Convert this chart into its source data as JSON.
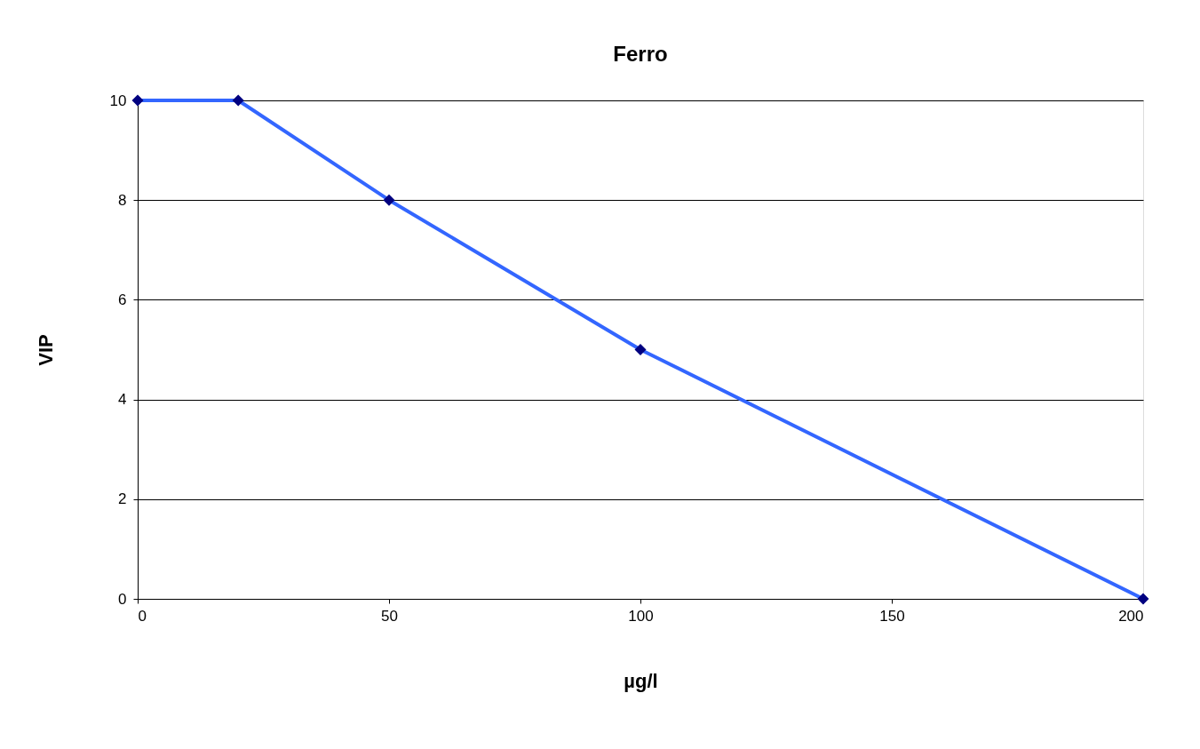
{
  "chart_data": {
    "type": "line",
    "title": "Ferro",
    "xlabel": "µg/l",
    "ylabel": "VIP",
    "x": [
      0,
      20,
      50,
      100,
      200
    ],
    "series": [
      {
        "color": "#3366ff",
        "colors": [
          "#000080",
          "#000080",
          "#000080",
          "#000080",
          "#000080"
        ],
        "values": [
          10,
          10,
          8,
          5,
          0
        ]
      }
    ],
    "xlim": [
      0,
      200
    ],
    "xticks": [
      0,
      50,
      100,
      150,
      200
    ],
    "ylim": [
      0,
      10
    ],
    "yticks": [
      0,
      2,
      4,
      6,
      8,
      10
    ],
    "grid": "y",
    "marker": "diamond",
    "line_style": "solid"
  }
}
